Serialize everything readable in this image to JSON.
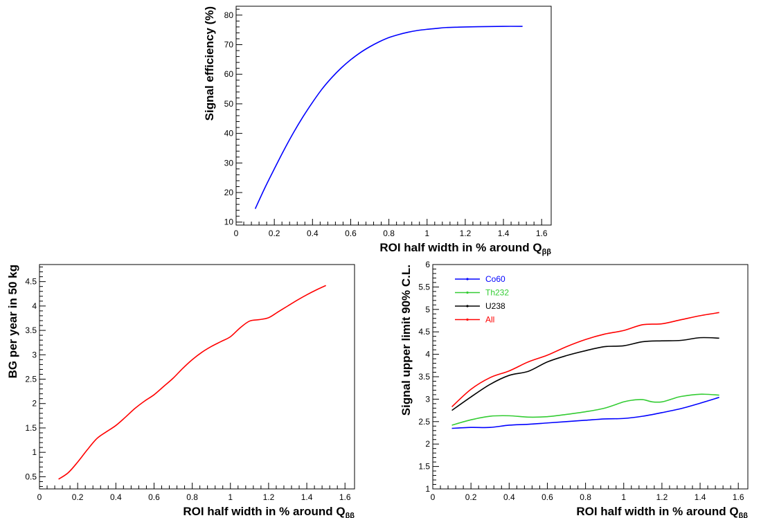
{
  "chart_data": [
    {
      "id": "efficiency",
      "type": "line",
      "xlabel": "ROI half width in % around Q",
      "xlabel_subscript": "ββ",
      "ylabel": "Signal efficiency (%)",
      "xlim": [
        0,
        1.65
      ],
      "ylim": [
        9,
        83
      ],
      "xticks": [
        0,
        0.2,
        0.4,
        0.6,
        0.8,
        1,
        1.2,
        1.4,
        1.6
      ],
      "yticks": [
        10,
        20,
        30,
        40,
        50,
        60,
        70,
        80
      ],
      "series": [
        {
          "color": "#0000ff",
          "x": [
            0.1,
            0.15,
            0.2,
            0.25,
            0.3,
            0.35,
            0.4,
            0.45,
            0.5,
            0.55,
            0.6,
            0.65,
            0.7,
            0.75,
            0.8,
            0.85,
            0.9,
            0.95,
            1.0,
            1.05,
            1.1,
            1.15,
            1.2,
            1.3,
            1.4,
            1.5
          ],
          "y": [
            14.5,
            21.5,
            28,
            34.3,
            40.2,
            45.6,
            50.5,
            55.0,
            58.8,
            62.1,
            64.9,
            67.3,
            69.3,
            71.0,
            72.4,
            73.4,
            74.2,
            74.8,
            75.2,
            75.5,
            75.8,
            75.9,
            76.0,
            76.1,
            76.2,
            76.2
          ]
        }
      ]
    },
    {
      "id": "background",
      "type": "line",
      "xlabel": "ROI half width in % around Q",
      "xlabel_subscript": "ββ",
      "ylabel": "BG per year in 50 kg",
      "xlim": [
        0,
        1.65
      ],
      "ylim": [
        0.25,
        4.85
      ],
      "xticks": [
        0,
        0.2,
        0.4,
        0.6,
        0.8,
        1,
        1.2,
        1.4,
        1.6
      ],
      "yticks": [
        0.5,
        1,
        1.5,
        2,
        2.5,
        3,
        3.5,
        4,
        4.5
      ],
      "ytick_labels": [
        "0.5",
        "1",
        "1.5",
        "2",
        "2.5",
        "3",
        "3.5",
        "4",
        "4.5"
      ],
      "series": [
        {
          "color": "#ff0000",
          "x": [
            0.1,
            0.15,
            0.2,
            0.25,
            0.3,
            0.35,
            0.4,
            0.45,
            0.5,
            0.55,
            0.6,
            0.65,
            0.7,
            0.75,
            0.8,
            0.85,
            0.9,
            0.95,
            1.0,
            1.05,
            1.1,
            1.15,
            1.2,
            1.25,
            1.3,
            1.35,
            1.4,
            1.45,
            1.5
          ],
          "y": [
            0.45,
            0.58,
            0.8,
            1.05,
            1.28,
            1.42,
            1.55,
            1.72,
            1.9,
            2.05,
            2.18,
            2.35,
            2.52,
            2.72,
            2.9,
            3.05,
            3.17,
            3.27,
            3.37,
            3.55,
            3.69,
            3.72,
            3.76,
            3.88,
            4.0,
            4.12,
            4.23,
            4.33,
            4.42
          ]
        }
      ]
    },
    {
      "id": "upper-limit",
      "type": "line",
      "xlabel": "ROI half width in % around Q",
      "xlabel_subscript": "ββ",
      "ylabel": "Signal upper limit 90% C.L.",
      "xlim": [
        0,
        1.65
      ],
      "ylim": [
        1,
        6
      ],
      "xticks": [
        0,
        0.2,
        0.4,
        0.6,
        0.8,
        1,
        1.2,
        1.4,
        1.6
      ],
      "yticks": [
        1,
        1.5,
        2,
        2.5,
        3,
        3.5,
        4,
        4.5,
        5,
        5.5,
        6
      ],
      "ytick_labels": [
        "1",
        "1.5",
        "2",
        "2.5",
        "3",
        "3.5",
        "4",
        "4.5",
        "5",
        "5.5",
        "6"
      ],
      "legend_position": "top-left",
      "series": [
        {
          "name": "Co60",
          "color": "#0000ff",
          "x": [
            0.1,
            0.2,
            0.3,
            0.4,
            0.5,
            0.6,
            0.7,
            0.8,
            0.9,
            1.0,
            1.1,
            1.2,
            1.3,
            1.4,
            1.5
          ],
          "y": [
            2.35,
            2.37,
            2.37,
            2.42,
            2.44,
            2.47,
            2.5,
            2.53,
            2.56,
            2.57,
            2.62,
            2.7,
            2.79,
            2.91,
            3.04
          ]
        },
        {
          "name": "Th232",
          "color": "#33cc33",
          "x": [
            0.1,
            0.2,
            0.3,
            0.4,
            0.5,
            0.6,
            0.7,
            0.8,
            0.9,
            1.0,
            1.05,
            1.1,
            1.15,
            1.2,
            1.25,
            1.3,
            1.4,
            1.5
          ],
          "y": [
            2.42,
            2.54,
            2.62,
            2.63,
            2.6,
            2.61,
            2.66,
            2.72,
            2.8,
            2.94,
            2.98,
            2.99,
            2.94,
            2.94,
            3.0,
            3.06,
            3.11,
            3.09
          ]
        },
        {
          "name": "U238",
          "color": "#000000",
          "x": [
            0.1,
            0.2,
            0.3,
            0.4,
            0.5,
            0.6,
            0.7,
            0.8,
            0.9,
            1.0,
            1.1,
            1.2,
            1.3,
            1.4,
            1.5
          ],
          "y": [
            2.75,
            3.05,
            3.33,
            3.53,
            3.62,
            3.83,
            3.97,
            4.08,
            4.17,
            4.19,
            4.28,
            4.3,
            4.31,
            4.37,
            4.36
          ]
        },
        {
          "name": "All",
          "color": "#ff0000",
          "x": [
            0.1,
            0.2,
            0.3,
            0.4,
            0.5,
            0.6,
            0.7,
            0.8,
            0.9,
            1.0,
            1.1,
            1.2,
            1.3,
            1.4,
            1.5
          ],
          "y": [
            2.83,
            3.22,
            3.48,
            3.63,
            3.83,
            3.98,
            4.17,
            4.33,
            4.45,
            4.53,
            4.66,
            4.68,
            4.77,
            4.86,
            4.93
          ]
        }
      ]
    }
  ]
}
